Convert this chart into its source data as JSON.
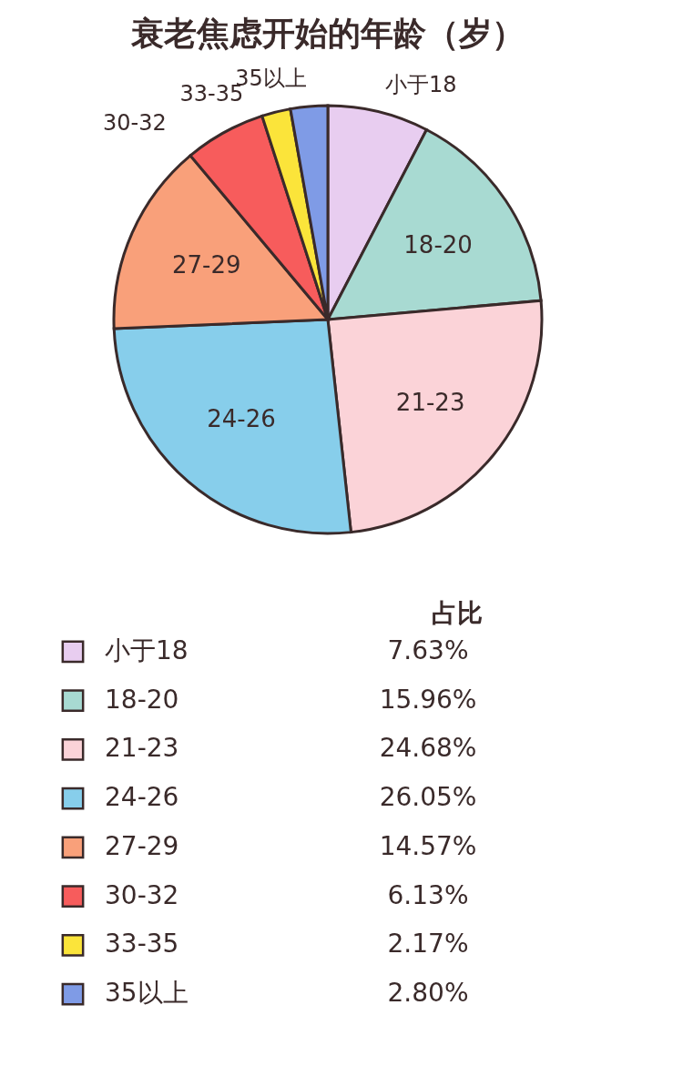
{
  "chart_data": {
    "type": "pie",
    "title": "衰老焦虑开始的年龄（岁）",
    "categories": [
      "小于18",
      "18-20",
      "21-23",
      "24-26",
      "27-29",
      "30-32",
      "33-35",
      "35以上"
    ],
    "values": [
      7.63,
      15.96,
      24.68,
      26.05,
      14.57,
      6.13,
      2.17,
      2.8
    ],
    "colors": [
      "#e8cdf0",
      "#a8dad2",
      "#fbd3d8",
      "#87ceeb",
      "#f9a07a",
      "#f75c5c",
      "#fbe43a",
      "#7f9be6"
    ],
    "value_labels": [
      "7.63%",
      "15.96%",
      "24.68%",
      "26.05%",
      "14.57%",
      "6.13%",
      "2.17%",
      "2.80%"
    ],
    "legend_title": "占比",
    "legend": "bottom"
  }
}
